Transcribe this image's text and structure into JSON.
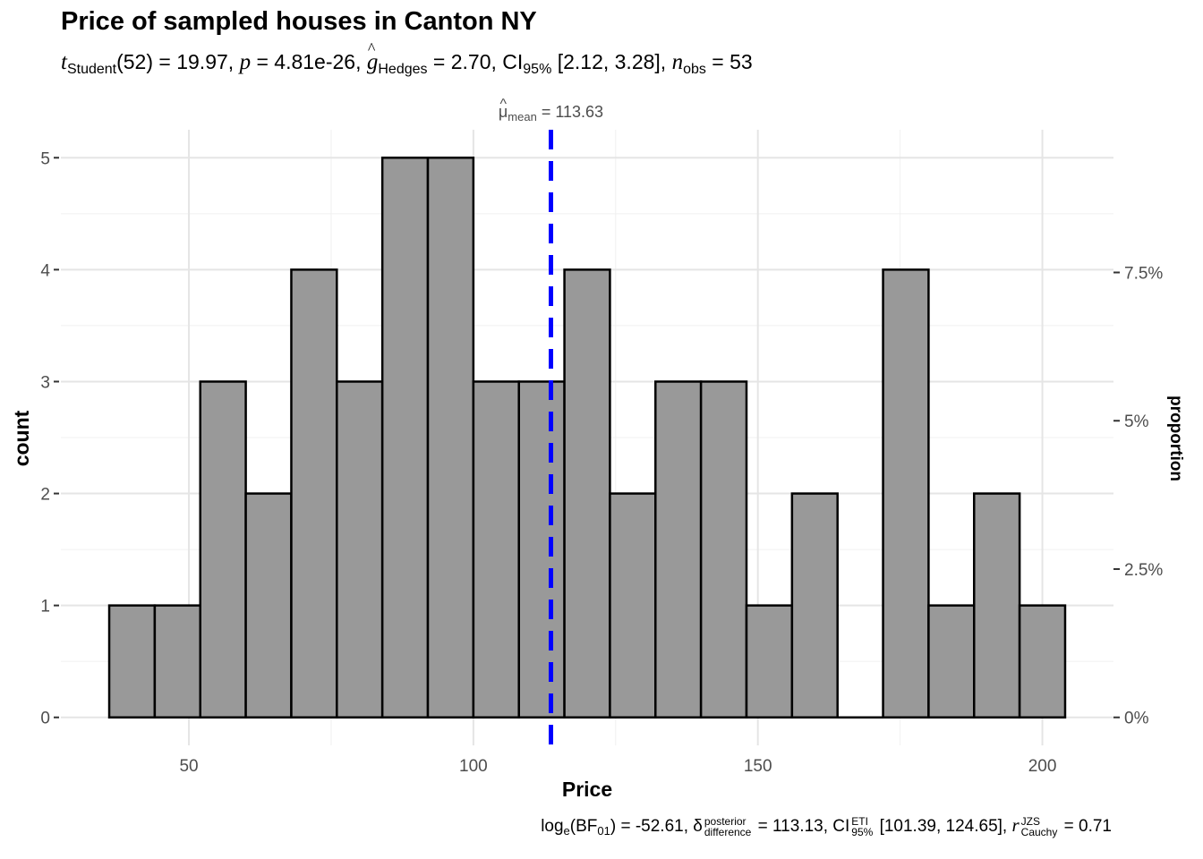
{
  "chart_data": {
    "type": "bar",
    "title": "Price of sampled houses in Canton NY",
    "subtitle": {
      "t_label": "t",
      "t_sub": "Student",
      "df": "(52) = 19.97, ",
      "p_label": "p",
      "p_val": " = 4.81e-26, ",
      "g_label": "g",
      "g_sub": "Hedges",
      "g_val": " = 2.70, CI",
      "ci_sub": "95%",
      "ci_val": " [2.12, 3.28], ",
      "n_label": "n",
      "n_sub": "obs",
      "n_val": " = 53"
    },
    "caption": {
      "log": "log",
      "log_sub": "e",
      "bf": "(BF",
      "bf_sub": "01",
      "bf_val": ") = -52.61, δ",
      "delta_sup": "posterior",
      "delta_sub": "difference",
      "delta_val": " = 113.13, CI",
      "ci_sup": "ETI",
      "ci_sub": "95%",
      "ci_val": " [101.39, 124.65], ",
      "r_label": "r",
      "r_sup": "JZS",
      "r_sub": "Cauchy",
      "r_val": " = 0.71"
    },
    "xlabel": "Price",
    "ylabel": "count",
    "y2label": "proportion",
    "bins": [
      {
        "start": 36,
        "end": 44,
        "count": 1
      },
      {
        "start": 44,
        "end": 52,
        "count": 1
      },
      {
        "start": 52,
        "end": 60,
        "count": 3
      },
      {
        "start": 60,
        "end": 68,
        "count": 2
      },
      {
        "start": 68,
        "end": 76,
        "count": 4
      },
      {
        "start": 76,
        "end": 84,
        "count": 3
      },
      {
        "start": 84,
        "end": 92,
        "count": 5
      },
      {
        "start": 92,
        "end": 100,
        "count": 5
      },
      {
        "start": 100,
        "end": 108,
        "count": 3
      },
      {
        "start": 108,
        "end": 116,
        "count": 3
      },
      {
        "start": 116,
        "end": 124,
        "count": 4
      },
      {
        "start": 124,
        "end": 132,
        "count": 2
      },
      {
        "start": 132,
        "end": 140,
        "count": 3
      },
      {
        "start": 140,
        "end": 148,
        "count": 3
      },
      {
        "start": 148,
        "end": 156,
        "count": 1
      },
      {
        "start": 156,
        "end": 164,
        "count": 2
      },
      {
        "start": 164,
        "end": 172,
        "count": 0
      },
      {
        "start": 172,
        "end": 180,
        "count": 4
      },
      {
        "start": 180,
        "end": 188,
        "count": 1
      },
      {
        "start": 188,
        "end": 196,
        "count": 2
      },
      {
        "start": 196,
        "end": 204,
        "count": 1
      }
    ],
    "xlim": [
      27.5,
      212.5
    ],
    "ylim": [
      -0.25,
      5.25
    ],
    "xticks": [
      50,
      100,
      150,
      200
    ],
    "yticks": [
      0,
      1,
      2,
      3,
      4,
      5
    ],
    "y2ticks": [
      {
        "value": 0,
        "label": "0%"
      },
      {
        "value": 1.325,
        "label": "2.5%"
      },
      {
        "value": 2.65,
        "label": "5%"
      },
      {
        "value": 3.975,
        "label": "7.5%"
      }
    ],
    "mean": 113.63,
    "mean_label_sym": "μ",
    "mean_label_sub": "mean",
    "mean_label_val": " = 113.63",
    "colors": {
      "bar_fill": "#999999",
      "bar_stroke": "#000000",
      "mean_line": "#0000ff",
      "grid": "#e5e5e5"
    }
  }
}
